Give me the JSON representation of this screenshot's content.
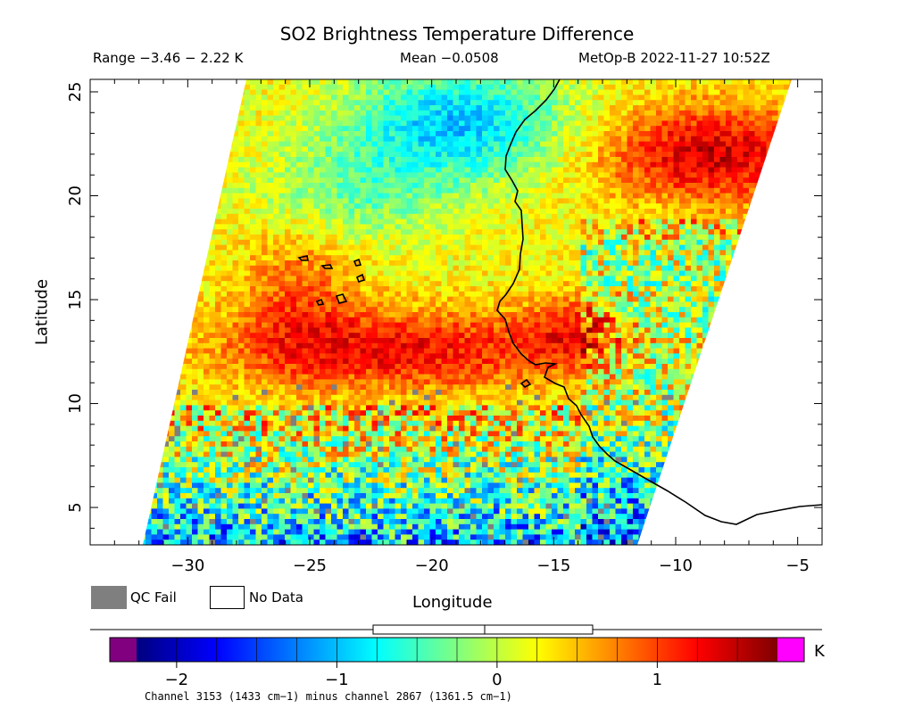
{
  "map": {
    "title": "SO2 Brightness Temperature Difference",
    "range_text": "Range −3.46 − 2.22 K",
    "mean_text": "Mean −0.0508",
    "satellite_text": "MetOp-B 2022-11-27 10:52Z",
    "x_axis_label": "Longitude",
    "y_axis_label": "Latitude",
    "x_ticks": [
      "−30",
      "−25",
      "−20",
      "−15",
      "−10",
      "−5"
    ],
    "x_tick_values": [
      -30,
      -25,
      -20,
      -15,
      -10,
      -5
    ],
    "y_ticks": [
      "5",
      "10",
      "15",
      "20",
      "25"
    ],
    "y_tick_values": [
      5,
      10,
      15,
      20,
      25
    ],
    "lon_range": [
      -34,
      -4
    ],
    "lat_range": [
      3.2,
      25.6
    ]
  },
  "legend": {
    "qc_fail_label": "QC Fail",
    "no_data_label": "No Data",
    "qc_fail_color": "#7f7f7f",
    "no_data_color": "#ffffff"
  },
  "colorbar": {
    "unit": "K",
    "tick_labels": [
      "−2",
      "−1",
      "0",
      "1"
    ],
    "tick_values": [
      -2,
      -1,
      0,
      1
    ],
    "value_range": [
      -2.25,
      1.75
    ],
    "low_overflow_color": "#800080",
    "high_overflow_color": "#ff00ff",
    "stops": [
      "#00007f",
      "#0000ff",
      "#0080ff",
      "#00ffff",
      "#80ff80",
      "#ffff00",
      "#ff8000",
      "#ff0000",
      "#7f0000"
    ],
    "box_whisker_note": "",
    "caption": "Channel 3153 (1433 cm−1) minus channel 2867 (1361.5 cm−1)"
  }
}
